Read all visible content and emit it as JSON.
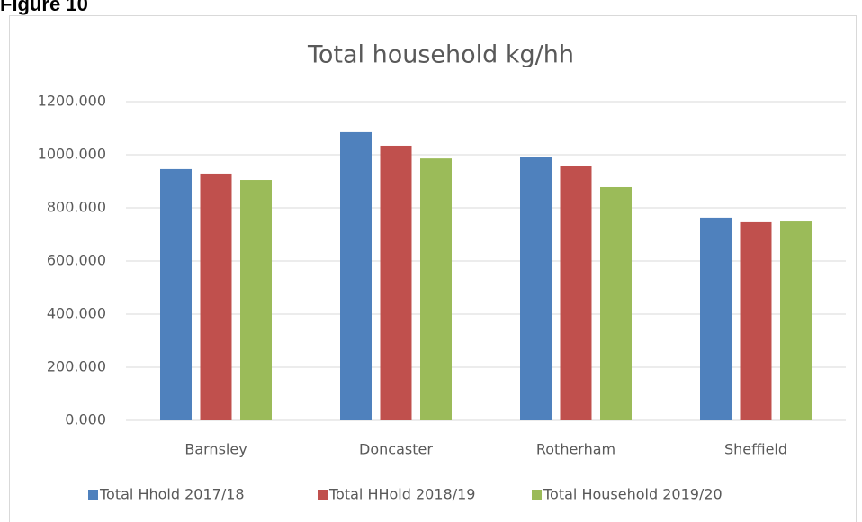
{
  "heading": "Figure 10",
  "chart_data": {
    "type": "bar",
    "title": "Total household kg/hh",
    "categories": [
      "Barnsley",
      "Doncaster",
      "Rotherham",
      "Sheffield"
    ],
    "series": [
      {
        "name": "Total Hhold 2017/18",
        "color": "#4f81bd",
        "values": [
          946,
          1085,
          993,
          763
        ]
      },
      {
        "name": "Total HHold 2018/19",
        "color": "#c0504d",
        "values": [
          929,
          1034,
          956,
          746
        ]
      },
      {
        "name": "Total Household 2019/20",
        "color": "#9bbb59",
        "values": [
          905,
          986,
          878,
          749
        ]
      }
    ],
    "ylim": [
      0,
      1200
    ],
    "yticks": [
      {
        "value": 0,
        "label": "0.000"
      },
      {
        "value": 200,
        "label": "200.000"
      },
      {
        "value": 400,
        "label": "400.000"
      },
      {
        "value": 600,
        "label": "600.000"
      },
      {
        "value": 800,
        "label": "800.000"
      },
      {
        "value": 1000,
        "label": "1000.000"
      },
      {
        "value": 1200,
        "label": "1200.000"
      }
    ],
    "grid": true,
    "legend": "bottom"
  }
}
